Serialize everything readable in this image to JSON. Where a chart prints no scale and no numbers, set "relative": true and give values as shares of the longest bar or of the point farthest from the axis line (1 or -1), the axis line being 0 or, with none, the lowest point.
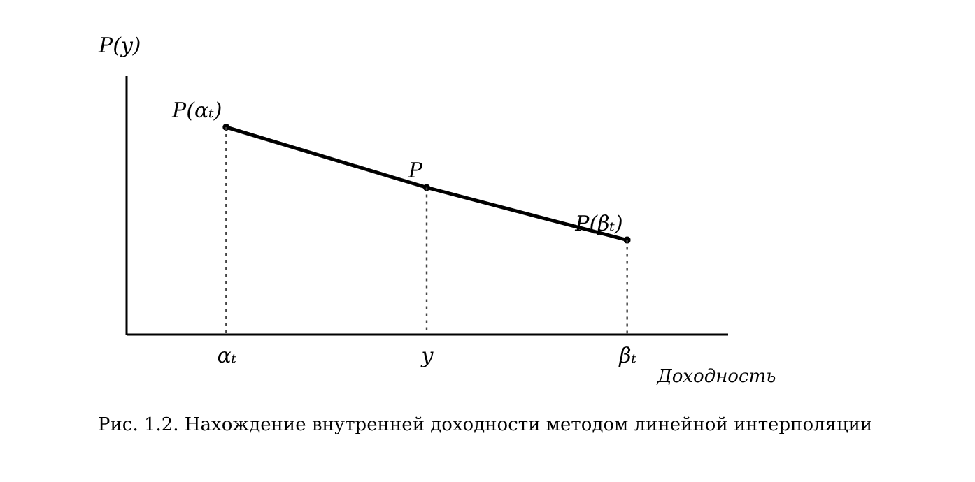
{
  "chart_data": {
    "type": "line",
    "relative": true,
    "xlabel": "Доходность",
    "ylabel": "P(y)",
    "categories": [
      "αₜ",
      "y",
      "βₜ"
    ],
    "series": [
      {
        "color": "#000000",
        "values": [
          1,
          0.708,
          0.454
        ]
      }
    ],
    "marker": "circle",
    "line_style": "solid",
    "annotations": [
      {
        "text": "P(αₜ)",
        "x": "αₜ",
        "y": 1
      },
      {
        "text": "P",
        "x": "y",
        "y": 0.708
      },
      {
        "text": "P(βₜ)",
        "x": "βₜ",
        "y": 0.454
      },
      "Рис. 1.2. Нахождение внутренней доходности методом линейной интерполяции"
    ]
  }
}
